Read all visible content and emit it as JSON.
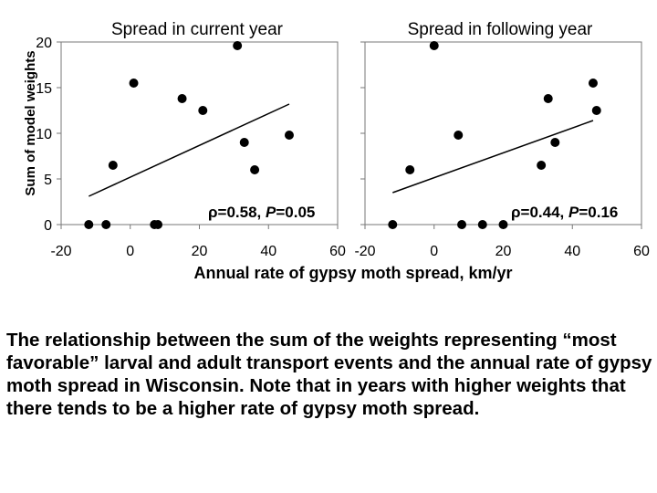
{
  "figure": {
    "ylabel": "Sum of model weights",
    "xlabel": "Annual rate of gypsy moth spread, km/yr"
  },
  "chart_data": [
    {
      "type": "scatter",
      "title": "Spread in current year",
      "xlim": [
        -20,
        60
      ],
      "ylim": [
        0,
        20
      ],
      "xticks": [
        "-20",
        "0",
        "20",
        "40",
        "60"
      ],
      "yticks": [
        "0",
        "5",
        "10",
        "15",
        "20"
      ],
      "points": [
        {
          "x": -12,
          "y": 0
        },
        {
          "x": -7,
          "y": 0
        },
        {
          "x": 7,
          "y": 0
        },
        {
          "x": 8,
          "y": 0
        },
        {
          "x": -5,
          "y": 6.5
        },
        {
          "x": 1,
          "y": 15.5
        },
        {
          "x": 15,
          "y": 13.8
        },
        {
          "x": 21,
          "y": 12.5
        },
        {
          "x": 31,
          "y": 19.6
        },
        {
          "x": 33,
          "y": 9
        },
        {
          "x": 36,
          "y": 6
        },
        {
          "x": 46,
          "y": 9.8
        }
      ],
      "trendline": {
        "x": [
          -12,
          46
        ],
        "y": [
          3.1,
          13.2
        ]
      },
      "annotation": {
        "rho_symbol": "ρ",
        "rho_text": "=0.58, ",
        "p_symbol": "P",
        "p_text": "=0.05"
      }
    },
    {
      "type": "scatter",
      "title": "Spread in following year",
      "xlim": [
        -20,
        60
      ],
      "ylim": [
        0,
        20
      ],
      "xticks": [
        "-20",
        "0",
        "20",
        "40",
        "60"
      ],
      "yticks": [
        "0",
        "5",
        "10",
        "15",
        "20"
      ],
      "points": [
        {
          "x": -12,
          "y": 0
        },
        {
          "x": 8,
          "y": 0
        },
        {
          "x": 14,
          "y": 0
        },
        {
          "x": 20,
          "y": 0
        },
        {
          "x": -7,
          "y": 6
        },
        {
          "x": 0,
          "y": 19.6
        },
        {
          "x": 7,
          "y": 9.8
        },
        {
          "x": 31,
          "y": 6.5
        },
        {
          "x": 33,
          "y": 13.8
        },
        {
          "x": 35,
          "y": 9
        },
        {
          "x": 46,
          "y": 15.5
        },
        {
          "x": 47,
          "y": 12.5
        }
      ],
      "trendline": {
        "x": [
          -12,
          46
        ],
        "y": [
          3.5,
          11.4
        ]
      },
      "annotation": {
        "rho_symbol": "ρ",
        "rho_text": "=0.44, ",
        "p_symbol": "P",
        "p_text": "=0.16"
      }
    }
  ],
  "caption": "The relationship between the sum of the weights representing “most favorable” larval and adult transport events and the annual rate of gypsy moth spread in Wisconsin. Note that in years with higher weights that there tends to be a higher rate of gypsy moth spread."
}
